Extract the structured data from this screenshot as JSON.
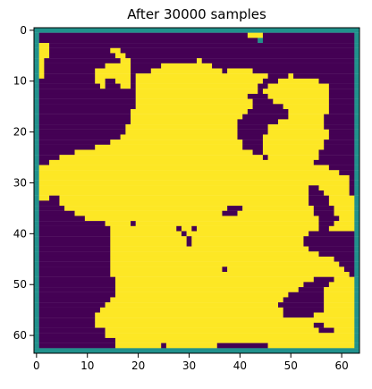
{
  "chart_data": {
    "type": "heatmap",
    "title": "After 30000 samples",
    "xlabel": "",
    "ylabel": "",
    "grid": false,
    "grid_size": [
      64,
      64
    ],
    "xlim": [
      -0.5,
      63.5
    ],
    "ylim": [
      63.5,
      -0.5
    ],
    "xticks": [
      0,
      10,
      20,
      30,
      40,
      50,
      60
    ],
    "yticks": [
      0,
      10,
      20,
      30,
      40,
      50,
      60
    ],
    "colormap": "viridis",
    "value_colors": {
      "0": "#440154",
      "0.5": "#21918c",
      "1": "#fde725"
    },
    "description_of_values": "0 = dark purple background, 1 = yellow region, 0.5 = teal border",
    "border_value": 0.5,
    "yellow_runs_by_row": [
      [],
      [
        [
          42,
          44
        ]
      ],
      [],
      [
        [
          1,
          2
        ]
      ],
      [
        [
          1,
          2
        ],
        [
          15,
          16
        ]
      ],
      [
        [
          1,
          2
        ],
        [
          16,
          17
        ]
      ],
      [
        [
          1,
          1
        ],
        [
          17,
          18
        ],
        [
          32,
          32
        ]
      ],
      [
        [
          1,
          1
        ],
        [
          14,
          18
        ],
        [
          25,
          34
        ]
      ],
      [
        [
          1,
          1
        ],
        [
          12,
          18
        ],
        [
          23,
          36
        ],
        [
          38,
          42
        ]
      ],
      [
        [
          1,
          1
        ],
        [
          12,
          18
        ],
        [
          20,
          45
        ],
        [
          50,
          50
        ]
      ],
      [
        [
          12,
          13
        ],
        [
          16,
          18
        ],
        [
          20,
          44
        ],
        [
          48,
          55
        ]
      ],
      [
        [
          13,
          13
        ],
        [
          17,
          18
        ],
        [
          20,
          43
        ],
        [
          46,
          57
        ]
      ],
      [
        [
          20,
          43
        ],
        [
          45,
          57
        ]
      ],
      [
        [
          20,
          41
        ],
        [
          46,
          57
        ]
      ],
      [
        [
          20,
          42
        ],
        [
          47,
          57
        ]
      ],
      [
        [
          20,
          42
        ],
        [
          49,
          57
        ]
      ],
      [
        [
          19,
          41
        ],
        [
          50,
          57
        ]
      ],
      [
        [
          19,
          40
        ],
        [
          50,
          56
        ]
      ],
      [
        [
          19,
          39
        ],
        [
          48,
          56
        ]
      ],
      [
        [
          18,
          39
        ],
        [
          46,
          56
        ]
      ],
      [
        [
          18,
          39
        ],
        [
          46,
          57
        ]
      ],
      [
        [
          17,
          39
        ],
        [
          45,
          57
        ]
      ],
      [
        [
          15,
          40
        ],
        [
          45,
          56
        ]
      ],
      [
        [
          12,
          40
        ],
        [
          45,
          56
        ]
      ],
      [
        [
          8,
          42
        ],
        [
          45,
          55
        ]
      ],
      [
        [
          5,
          44
        ],
        [
          46,
          55
        ]
      ],
      [
        [
          3,
          48
        ],
        [
          49,
          54
        ]
      ],
      [
        [
          1,
          57
        ]
      ],
      [
        [
          1,
          59
        ]
      ],
      [
        [
          1,
          61
        ]
      ],
      [
        [
          1,
          61
        ]
      ],
      [
        [
          1,
          53
        ],
        [
          56,
          61
        ]
      ],
      [
        [
          1,
          53
        ],
        [
          57,
          61
        ]
      ],
      [
        [
          1,
          2
        ],
        [
          5,
          53
        ],
        [
          58,
          62
        ]
      ],
      [
        [
          5,
          53
        ],
        [
          58,
          62
        ]
      ],
      [
        [
          6,
          54
        ],
        [
          59,
          62
        ]
      ],
      [
        [
          8,
          54
        ],
        [
          59,
          62
        ]
      ],
      [
        [
          10,
          55
        ],
        [
          60,
          62
        ]
      ],
      [
        [
          14,
          55
        ],
        [
          59,
          62
        ]
      ],
      [
        [
          15,
          55
        ],
        [
          58,
          62
        ]
      ],
      [
        [
          15,
          53
        ]
      ],
      [
        [
          15,
          52
        ]
      ],
      [
        [
          15,
          52
        ]
      ],
      [
        [
          15,
          53
        ]
      ],
      [
        [
          15,
          55
        ]
      ],
      [
        [
          15,
          58
        ]
      ],
      [
        [
          15,
          59
        ]
      ],
      [
        [
          15,
          60
        ]
      ],
      [
        [
          15,
          61
        ]
      ],
      [
        [
          16,
          54
        ],
        [
          59,
          62
        ]
      ],
      [
        [
          16,
          52
        ],
        [
          58,
          62
        ]
      ],
      [
        [
          16,
          51
        ],
        [
          57,
          62
        ]
      ],
      [
        [
          16,
          49
        ],
        [
          57,
          62
        ]
      ],
      [
        [
          15,
          48
        ],
        [
          57,
          62
        ]
      ],
      [
        [
          14,
          47
        ],
        [
          57,
          62
        ]
      ],
      [
        [
          13,
          48
        ],
        [
          57,
          62
        ]
      ],
      [
        [
          12,
          48
        ],
        [
          55,
          62
        ]
      ],
      [
        [
          12,
          62
        ]
      ],
      [
        [
          12,
          62
        ]
      ],
      [
        [
          14,
          62
        ]
      ],
      [
        [
          14,
          62
        ]
      ],
      [
        [
          16,
          62
        ]
      ],
      [
        [
          16,
          24
        ],
        [
          26,
          35
        ],
        [
          46,
          62
        ]
      ],
      [
        [
          21,
          21
        ],
        [
          29,
          31
        ],
        [
          43,
          44
        ]
      ]
    ],
    "dark_runs_overrides": [
      [
        35,
        [
          38,
          40
        ]
      ],
      [
        36,
        [
          37,
          39
        ]
      ],
      [
        47,
        [
          37,
          37
        ]
      ],
      [
        53,
        [
          53,
          55
        ]
      ],
      [
        54,
        [
          54,
          56
        ]
      ],
      [
        55,
        [
          51,
          55
        ]
      ],
      [
        58,
        [
          55,
          56
        ]
      ],
      [
        59,
        [
          56,
          58
        ]
      ]
    ],
    "dark_points_in_yellow": [
      [
        19,
        38
      ],
      [
        28,
        39
      ],
      [
        29,
        40
      ],
      [
        30,
        41
      ],
      [
        31,
        39
      ],
      [
        30,
        42
      ],
      [
        49,
        53
      ],
      [
        56,
        58
      ],
      [
        9,
        54
      ],
      [
        10,
        55
      ]
    ],
    "teal_points": [
      [
        44,
        2
      ]
    ]
  }
}
